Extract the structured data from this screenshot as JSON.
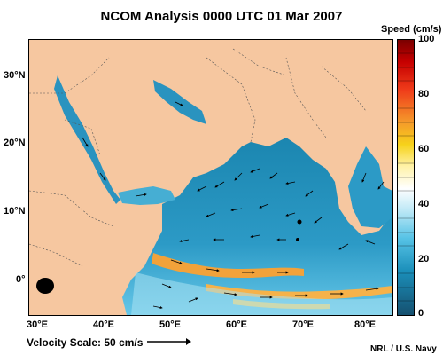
{
  "title": "NCOM Analysis 0000 UTC 01 Mar 2007",
  "colorbar": {
    "title": "Speed (cm/s)",
    "ticks": [
      "100",
      "80",
      "60",
      "40",
      "20",
      "0"
    ]
  },
  "axes": {
    "lat_labels": [
      "30°N",
      "20°N",
      "10°N",
      "0°"
    ],
    "lon_labels": [
      "30°E",
      "40°E",
      "50°E",
      "60°E",
      "70°E",
      "80°E"
    ]
  },
  "velocity_scale": "Velocity Scale: 50 cm/s",
  "credit": "NRL / U.S. Navy",
  "colors": {
    "land": "#f6c7a0",
    "ocean_slow": "#1a7fa8",
    "ocean_mid": "#8fd8f0",
    "ocean_fast": "#f2a23a"
  }
}
